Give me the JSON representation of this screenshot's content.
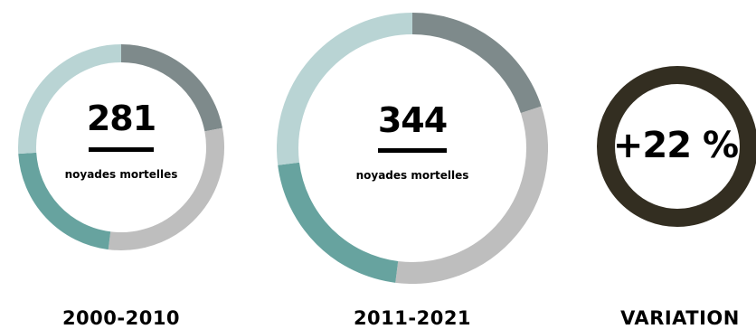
{
  "colors": {
    "slate": "#7e8a8b",
    "light_gray": "#bebebe",
    "teal": "#67a39f",
    "pale_teal": "#b9d4d4",
    "variation_ring": "#332e21",
    "text": "#000000"
  },
  "chart_data": [
    {
      "type": "pie",
      "style": "donut",
      "center_value": "281",
      "center_label": "noyades mortelles",
      "period_label": "2000-2010",
      "segments": [
        {
          "fraction": 0.22,
          "color": "slate"
        },
        {
          "fraction": 0.3,
          "color": "light_gray"
        },
        {
          "fraction": 0.22,
          "color": "teal"
        },
        {
          "fraction": 0.26,
          "color": "pale_teal"
        }
      ]
    },
    {
      "type": "pie",
      "style": "donut",
      "center_value": "344",
      "center_label": "noyades mortelles",
      "period_label": "2011-2021",
      "segments": [
        {
          "fraction": 0.2,
          "color": "slate"
        },
        {
          "fraction": 0.32,
          "color": "light_gray"
        },
        {
          "fraction": 0.21,
          "color": "teal"
        },
        {
          "fraction": 0.27,
          "color": "pale_teal"
        }
      ]
    }
  ],
  "variation": {
    "value": "+22 %",
    "label": "VARIATION"
  }
}
